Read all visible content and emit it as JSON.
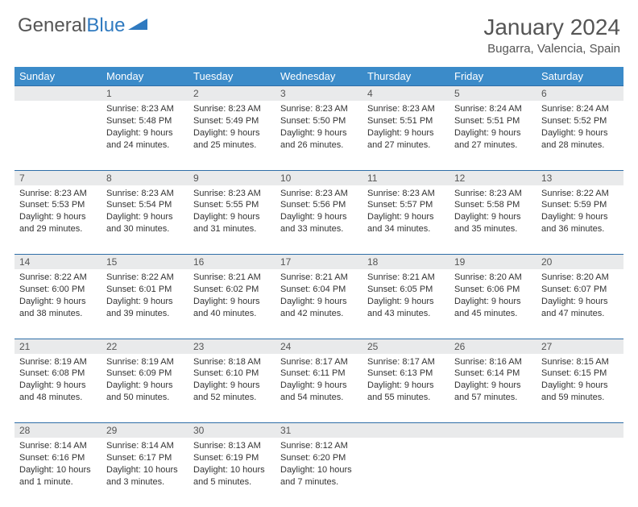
{
  "logo": {
    "text1": "General",
    "text2": "Blue"
  },
  "title": "January 2024",
  "location": "Bugarra, Valencia, Spain",
  "colors": {
    "header_bg": "#3b8bc9",
    "daynum_bg": "#e9eaeb",
    "row_border": "#2f6ea8",
    "logo_gray": "#555555",
    "logo_blue": "#2f7ac0"
  },
  "weekdays": [
    "Sunday",
    "Monday",
    "Tuesday",
    "Wednesday",
    "Thursday",
    "Friday",
    "Saturday"
  ],
  "weeks": [
    {
      "nums": [
        "",
        "1",
        "2",
        "3",
        "4",
        "5",
        "6"
      ],
      "cells": [
        null,
        {
          "sunrise": "8:23 AM",
          "sunset": "5:48 PM",
          "daylight": "9 hours and 24 minutes."
        },
        {
          "sunrise": "8:23 AM",
          "sunset": "5:49 PM",
          "daylight": "9 hours and 25 minutes."
        },
        {
          "sunrise": "8:23 AM",
          "sunset": "5:50 PM",
          "daylight": "9 hours and 26 minutes."
        },
        {
          "sunrise": "8:23 AM",
          "sunset": "5:51 PM",
          "daylight": "9 hours and 27 minutes."
        },
        {
          "sunrise": "8:24 AM",
          "sunset": "5:51 PM",
          "daylight": "9 hours and 27 minutes."
        },
        {
          "sunrise": "8:24 AM",
          "sunset": "5:52 PM",
          "daylight": "9 hours and 28 minutes."
        }
      ]
    },
    {
      "nums": [
        "7",
        "8",
        "9",
        "10",
        "11",
        "12",
        "13"
      ],
      "cells": [
        {
          "sunrise": "8:23 AM",
          "sunset": "5:53 PM",
          "daylight": "9 hours and 29 minutes."
        },
        {
          "sunrise": "8:23 AM",
          "sunset": "5:54 PM",
          "daylight": "9 hours and 30 minutes."
        },
        {
          "sunrise": "8:23 AM",
          "sunset": "5:55 PM",
          "daylight": "9 hours and 31 minutes."
        },
        {
          "sunrise": "8:23 AM",
          "sunset": "5:56 PM",
          "daylight": "9 hours and 33 minutes."
        },
        {
          "sunrise": "8:23 AM",
          "sunset": "5:57 PM",
          "daylight": "9 hours and 34 minutes."
        },
        {
          "sunrise": "8:23 AM",
          "sunset": "5:58 PM",
          "daylight": "9 hours and 35 minutes."
        },
        {
          "sunrise": "8:22 AM",
          "sunset": "5:59 PM",
          "daylight": "9 hours and 36 minutes."
        }
      ]
    },
    {
      "nums": [
        "14",
        "15",
        "16",
        "17",
        "18",
        "19",
        "20"
      ],
      "cells": [
        {
          "sunrise": "8:22 AM",
          "sunset": "6:00 PM",
          "daylight": "9 hours and 38 minutes."
        },
        {
          "sunrise": "8:22 AM",
          "sunset": "6:01 PM",
          "daylight": "9 hours and 39 minutes."
        },
        {
          "sunrise": "8:21 AM",
          "sunset": "6:02 PM",
          "daylight": "9 hours and 40 minutes."
        },
        {
          "sunrise": "8:21 AM",
          "sunset": "6:04 PM",
          "daylight": "9 hours and 42 minutes."
        },
        {
          "sunrise": "8:21 AM",
          "sunset": "6:05 PM",
          "daylight": "9 hours and 43 minutes."
        },
        {
          "sunrise": "8:20 AM",
          "sunset": "6:06 PM",
          "daylight": "9 hours and 45 minutes."
        },
        {
          "sunrise": "8:20 AM",
          "sunset": "6:07 PM",
          "daylight": "9 hours and 47 minutes."
        }
      ]
    },
    {
      "nums": [
        "21",
        "22",
        "23",
        "24",
        "25",
        "26",
        "27"
      ],
      "cells": [
        {
          "sunrise": "8:19 AM",
          "sunset": "6:08 PM",
          "daylight": "9 hours and 48 minutes."
        },
        {
          "sunrise": "8:19 AM",
          "sunset": "6:09 PM",
          "daylight": "9 hours and 50 minutes."
        },
        {
          "sunrise": "8:18 AM",
          "sunset": "6:10 PM",
          "daylight": "9 hours and 52 minutes."
        },
        {
          "sunrise": "8:17 AM",
          "sunset": "6:11 PM",
          "daylight": "9 hours and 54 minutes."
        },
        {
          "sunrise": "8:17 AM",
          "sunset": "6:13 PM",
          "daylight": "9 hours and 55 minutes."
        },
        {
          "sunrise": "8:16 AM",
          "sunset": "6:14 PM",
          "daylight": "9 hours and 57 minutes."
        },
        {
          "sunrise": "8:15 AM",
          "sunset": "6:15 PM",
          "daylight": "9 hours and 59 minutes."
        }
      ]
    },
    {
      "nums": [
        "28",
        "29",
        "30",
        "31",
        "",
        "",
        ""
      ],
      "cells": [
        {
          "sunrise": "8:14 AM",
          "sunset": "6:16 PM",
          "daylight": "10 hours and 1 minute."
        },
        {
          "sunrise": "8:14 AM",
          "sunset": "6:17 PM",
          "daylight": "10 hours and 3 minutes."
        },
        {
          "sunrise": "8:13 AM",
          "sunset": "6:19 PM",
          "daylight": "10 hours and 5 minutes."
        },
        {
          "sunrise": "8:12 AM",
          "sunset": "6:20 PM",
          "daylight": "10 hours and 7 minutes."
        },
        null,
        null,
        null
      ]
    }
  ],
  "labels": {
    "sunrise": "Sunrise:",
    "sunset": "Sunset:",
    "daylight": "Daylight:"
  }
}
